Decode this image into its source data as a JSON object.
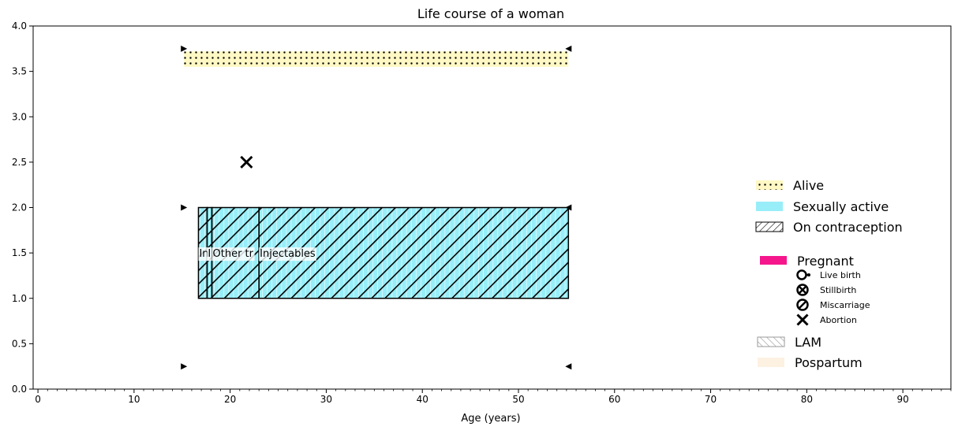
{
  "chart_data": {
    "type": "bar",
    "title": "Life course of a woman",
    "xlabel": "Age (years)",
    "ylabel": "",
    "xlim": [
      -0.5,
      95
    ],
    "ylim": [
      0,
      4.0
    ],
    "xticks": [
      0,
      10,
      20,
      30,
      40,
      50,
      60,
      70,
      80,
      90
    ],
    "yticks": [
      0.0,
      0.5,
      1.0,
      1.5,
      2.0,
      2.5,
      3.0,
      3.5,
      4.0
    ],
    "xtick_labels": [
      "0",
      "10",
      "20",
      "30",
      "40",
      "50",
      "60",
      "70",
      "80",
      "90"
    ],
    "ytick_labels": [
      "0.0",
      "0.5",
      "1.0",
      "1.5",
      "2.0",
      "2.5",
      "3.0",
      "3.5",
      "4.0"
    ],
    "grid": false,
    "legend_position": "right",
    "alive": {
      "start": 15.2,
      "end": 55.2,
      "y0": 3.55,
      "y1": 3.72
    },
    "sexually_active": {
      "start": 16.7,
      "end": 55.2,
      "y0": 1.0,
      "y1": 2.0
    },
    "contraception_segments": [
      {
        "start": 16.7,
        "end": 17.6,
        "label": "In"
      },
      {
        "start": 17.6,
        "end": 18.1,
        "label": "I"
      },
      {
        "start": 18.1,
        "end": 23.0,
        "label": "Other tr"
      },
      {
        "start": 23.0,
        "end": 55.2,
        "label": "Injectables"
      }
    ],
    "contraception_y": [
      1.0,
      2.0
    ],
    "method_label_y": 1.5,
    "events": [
      {
        "type": "Abortion",
        "age": 21.7,
        "y": 2.5
      }
    ],
    "period_markers": [
      {
        "age": 15.2,
        "y": 3.75,
        "direction": "right"
      },
      {
        "age": 55.2,
        "y": 3.75,
        "direction": "left"
      },
      {
        "age": 15.2,
        "y": 2.0,
        "direction": "right"
      },
      {
        "age": 55.2,
        "y": 2.0,
        "direction": "left"
      },
      {
        "age": 15.2,
        "y": 0.25,
        "direction": "right"
      },
      {
        "age": 55.2,
        "y": 0.25,
        "direction": "left"
      }
    ],
    "legend": {
      "main": [
        {
          "label": "Alive",
          "style": "dots",
          "color": "#fff8c4"
        },
        {
          "label": "Sexually active",
          "style": "fill",
          "color": "#98eef8"
        },
        {
          "label": "On contraception",
          "style": "hatch",
          "color": "#ffffff"
        }
      ],
      "pregnancy": {
        "label": "Pregnant",
        "color": "#f5168c"
      },
      "outcomes": [
        {
          "label": "Live birth",
          "icon": "live-birth-icon"
        },
        {
          "label": "Stillbirth",
          "icon": "stillbirth-icon"
        },
        {
          "label": "Miscarriage",
          "icon": "miscarriage-icon"
        },
        {
          "label": "Abortion",
          "icon": "abortion-icon"
        }
      ],
      "lam": {
        "label": "LAM",
        "color": "#999999"
      },
      "postpartum": {
        "label": "Pospartum",
        "color": "#fdf1e2"
      }
    }
  }
}
